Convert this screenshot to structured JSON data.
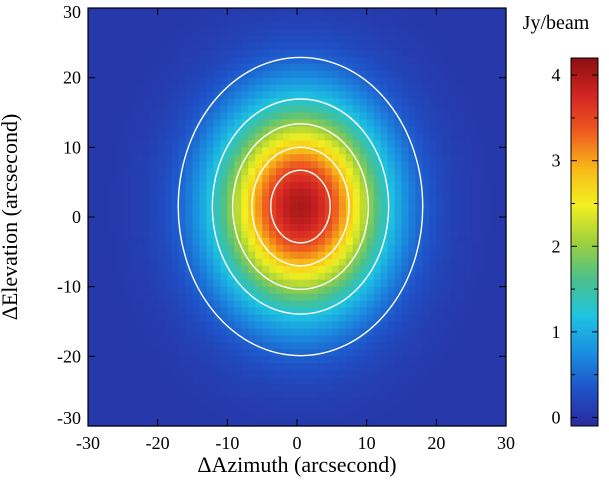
{
  "chart_data": {
    "type": "heatmap",
    "title": "",
    "xlabel": "ΔAzimuth (arcsecond)",
    "ylabel": "ΔElevation (arcsecond)",
    "xlim": [
      -30,
      30
    ],
    "ylim": [
      -30,
      30
    ],
    "xticks": [
      -30,
      -20,
      -10,
      0,
      10,
      20,
      30
    ],
    "yticks": [
      -30,
      -20,
      -10,
      0,
      10,
      20,
      30
    ],
    "xtick_labels": [
      "-30",
      "-20",
      "-10",
      "0",
      "10",
      "20",
      "30"
    ],
    "ytick_labels": [
      "-30",
      "-20",
      "-10",
      "0",
      "10",
      "20",
      "30"
    ],
    "peak": {
      "x": 0.5,
      "y": 1.5,
      "value": 4.0
    },
    "sigma_x": 8.2,
    "sigma_y": 10.0,
    "background_level": 0.05,
    "contour_levels": [
      0.45,
      1.25,
      2.0,
      2.8,
      3.5
    ],
    "contour_color": "#ffffff",
    "colorbar": {
      "label": "Jy/beam",
      "min": -0.1,
      "max": 4.2,
      "ticks": [
        0,
        1,
        2,
        3,
        4
      ],
      "tick_labels": [
        "0",
        "1",
        "2",
        "3",
        "4"
      ],
      "minor_step": 0.5
    },
    "colormap": [
      "#2a2a9a",
      "#1f52c8",
      "#1a8fe0",
      "#1ec4e0",
      "#4cc08a",
      "#9fd03c",
      "#f2f020",
      "#f8b818",
      "#ee5a20",
      "#d22424",
      "#8a1010"
    ]
  }
}
